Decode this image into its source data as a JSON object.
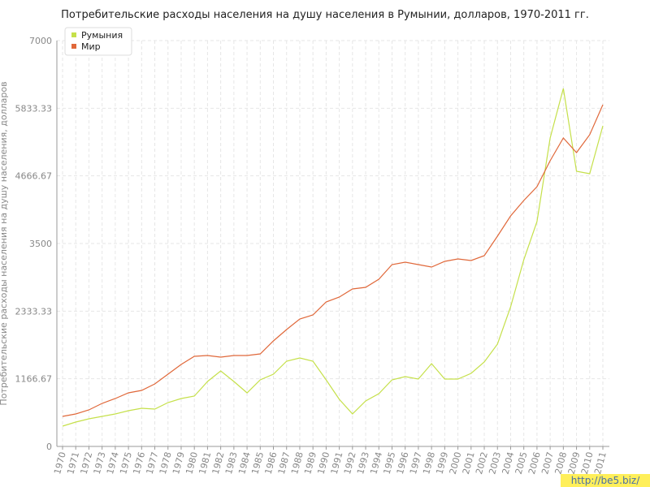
{
  "chart_data": {
    "type": "line",
    "title": "Потребительские расходы населения на душу населения в Румынии, долларов, 1970-2011 гг.",
    "y_label": "Потребительские расходы населения на душу населения, долларов",
    "watermark": "http://be5.biz/",
    "categories": [
      "1970",
      "1971",
      "1972",
      "1973",
      "1974",
      "1975",
      "1976",
      "1977",
      "1978",
      "1979",
      "1980",
      "1981",
      "1982",
      "1983",
      "1984",
      "1985",
      "1986",
      "1987",
      "1988",
      "1989",
      "1990",
      "1991",
      "1992",
      "1993",
      "1994",
      "1995",
      "1996",
      "1997",
      "1998",
      "1999",
      "2000",
      "2001",
      "2002",
      "2003",
      "2004",
      "2005",
      "2006",
      "2007",
      "2008",
      "2009",
      "2010",
      "2011"
    ],
    "series": [
      {
        "name": "Румыния",
        "color": "#c5e04a",
        "values": [
          350,
          420,
          476,
          518,
          560,
          616,
          658,
          644,
          756,
          826,
          868,
          1120,
          1302,
          1120,
          924,
          1148,
          1246,
          1470,
          1526,
          1470,
          1148,
          812,
          560,
          784,
          910,
          1148,
          1204,
          1162,
          1428,
          1162,
          1162,
          1260,
          1456,
          1764,
          2408,
          3220,
          3878,
          5320,
          6174,
          4746,
          4704,
          5530
        ]
      },
      {
        "name": "Мир",
        "color": "#e0683a",
        "values": [
          518,
          560,
          630,
          742,
          826,
          924,
          966,
          1078,
          1246,
          1414,
          1554,
          1568,
          1540,
          1568,
          1568,
          1596,
          1820,
          2016,
          2198,
          2268,
          2492,
          2576,
          2716,
          2744,
          2884,
          3136,
          3178,
          3136,
          3094,
          3192,
          3234,
          3206,
          3290,
          3626,
          3976,
          4242,
          4480,
          4928,
          5320,
          5068,
          5376,
          5894
        ]
      }
    ],
    "ylim": [
      0,
      7000
    ],
    "yticks": [
      0,
      1166.67,
      2333.33,
      3500,
      4666.67,
      5833.33,
      7000
    ],
    "grid": true,
    "legend": "top-left"
  }
}
